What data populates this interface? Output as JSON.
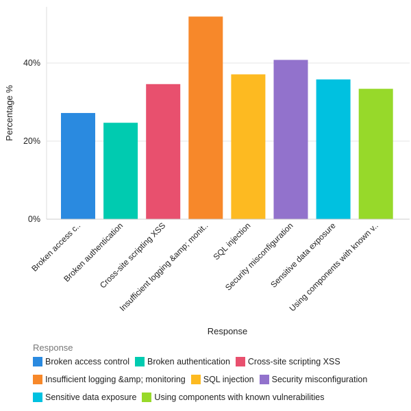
{
  "chart_data": {
    "type": "bar",
    "xlabel": "Response",
    "ylabel": "Percentage %",
    "ylim": [
      0,
      54
    ],
    "yticks": [
      0,
      20,
      40
    ],
    "ytick_labels": [
      "0%",
      "20%",
      "40%"
    ],
    "grid": true,
    "legend_title": "Response",
    "legend_position": "bottom",
    "categories": [
      "Broken access control",
      "Broken authentication",
      "Cross-site scripting XSS",
      "Insufficient logging &amp; monitoring",
      "SQL injection",
      "Security misconfiguration",
      "Sensitive data exposure",
      "Using components with known vulnerabilities"
    ],
    "tick_labels": [
      "Broken access c..",
      "Broken authentication",
      "Cross-site scripting XSS",
      "Insufficient logging &amp; monit..",
      "SQL injection",
      "Security misconfiguration",
      "Sensitive data exposure",
      "Using components with known v.."
    ],
    "values": [
      27.2,
      24.7,
      34.6,
      51.9,
      37.1,
      40.8,
      35.8,
      33.4
    ],
    "colors": [
      "#2a8ae0",
      "#00cbb0",
      "#e8506e",
      "#f7882a",
      "#fdba21",
      "#9272cc",
      "#00c1e0",
      "#97d92a"
    ]
  }
}
